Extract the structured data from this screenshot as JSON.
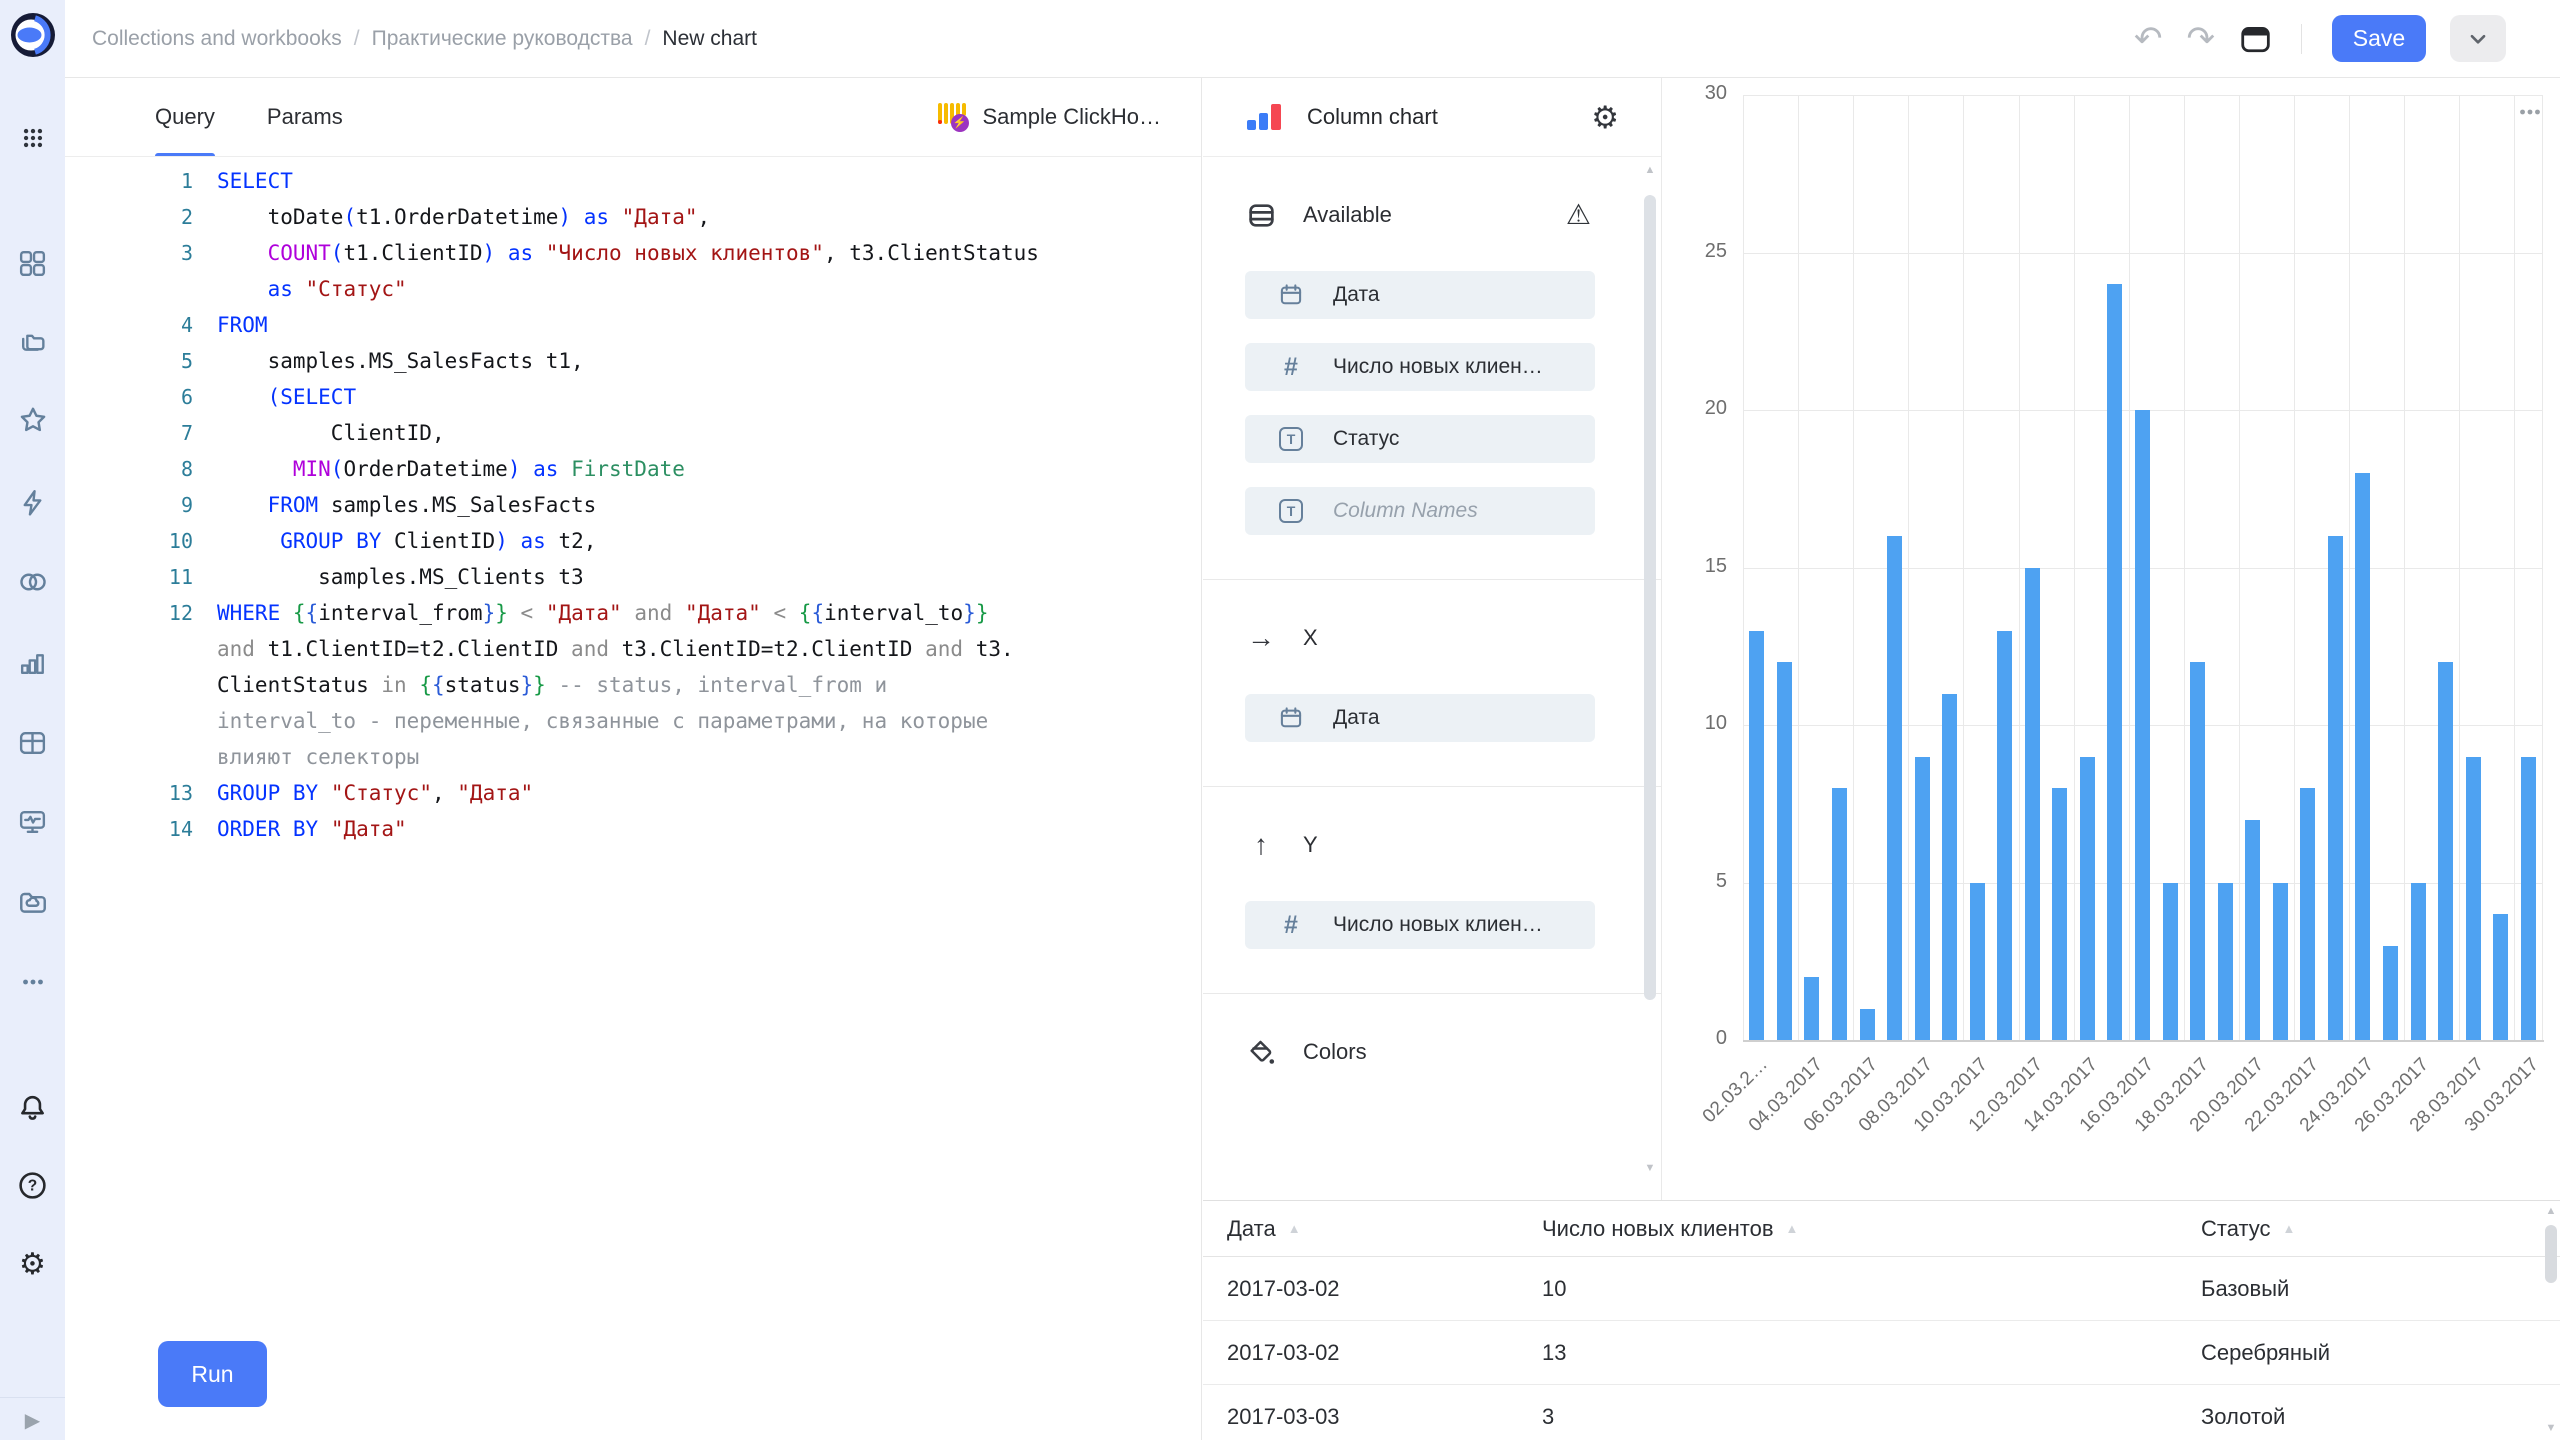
{
  "header": {
    "breadcrumb": [
      "Collections and workbooks",
      "Практические руководства",
      "New chart"
    ],
    "separator": "/",
    "actions": {
      "save_label": "Save",
      "icons": [
        "undo-icon",
        "redo-icon",
        "layout-icon",
        "chevron-down-icon"
      ]
    }
  },
  "sidebar": {
    "logo_icon": "datalens-logo",
    "apps_icon": "apps-grid-icon",
    "nav_icons": [
      "squares-icon",
      "folders-icon",
      "star-icon",
      "lightning-icon",
      "circles-icon",
      "bar-chart-icon",
      "table-icon",
      "monitor-icon",
      "cloud-folder-icon",
      "ellipsis-icon"
    ],
    "footer_icons": [
      "bell-icon",
      "help-icon",
      "gear-icon"
    ],
    "expand_icon": "play-icon"
  },
  "editor": {
    "tabs": [
      {
        "label": "Query",
        "active": true
      },
      {
        "label": "Params",
        "active": false
      }
    ],
    "connection": {
      "name": "Sample ClickHo…",
      "icon": "clickhouse-icon"
    },
    "run_label": "Run",
    "code": [
      {
        "ln": "1",
        "tokens": [
          [
            "kw",
            "SELECT"
          ]
        ]
      },
      {
        "ln": "2",
        "tokens": [
          [
            "id",
            "    "
          ],
          [
            "id",
            "toDate"
          ],
          [
            "pa",
            "("
          ],
          [
            "id",
            "t1.OrderDatetime"
          ],
          [
            "pa",
            ")"
          ],
          [
            "id",
            " "
          ],
          [
            "kw",
            "as"
          ],
          [
            "id",
            " "
          ],
          [
            "st",
            "\"Дата\""
          ],
          [
            "id",
            ","
          ]
        ]
      },
      {
        "ln": "3",
        "tokens": [
          [
            "id",
            "    "
          ],
          [
            "fn",
            "COUNT"
          ],
          [
            "pa",
            "("
          ],
          [
            "id",
            "t1.ClientID"
          ],
          [
            "pa",
            ")"
          ],
          [
            "id",
            " "
          ],
          [
            "kw",
            "as"
          ],
          [
            "id",
            " "
          ],
          [
            "st",
            "\"Число новых клиентов\""
          ],
          [
            "id",
            ","
          ],
          [
            "id",
            " "
          ],
          [
            "id",
            "t3.ClientStatus"
          ]
        ]
      },
      {
        "ln": "",
        "tokens": [
          [
            "id",
            "    "
          ],
          [
            "kw",
            "as"
          ],
          [
            "id",
            " "
          ],
          [
            "st",
            "\"Статус\""
          ]
        ]
      },
      {
        "ln": "4",
        "tokens": [
          [
            "kw",
            "FROM"
          ]
        ]
      },
      {
        "ln": "5",
        "tokens": [
          [
            "id",
            "    "
          ],
          [
            "id",
            "samples.MS_SalesFacts t1,"
          ]
        ]
      },
      {
        "ln": "6",
        "tokens": [
          [
            "id",
            "    "
          ],
          [
            "pa",
            "("
          ],
          [
            "kw",
            "SELECT"
          ]
        ]
      },
      {
        "ln": "7",
        "tokens": [
          [
            "id",
            "         "
          ],
          [
            "id",
            "ClientID,"
          ]
        ]
      },
      {
        "ln": "8",
        "tokens": [
          [
            "id",
            "      "
          ],
          [
            "fn",
            "MIN"
          ],
          [
            "pa",
            "("
          ],
          [
            "id",
            "OrderDatetime"
          ],
          [
            "pa",
            ")"
          ],
          [
            "id",
            " "
          ],
          [
            "kw",
            "as"
          ],
          [
            "id",
            " "
          ],
          [
            "ty",
            "FirstDate"
          ]
        ]
      },
      {
        "ln": "9",
        "tokens": [
          [
            "id",
            "    "
          ],
          [
            "kw",
            "FROM"
          ],
          [
            "id",
            " "
          ],
          [
            "id",
            "samples.MS_SalesFacts"
          ]
        ]
      },
      {
        "ln": "10",
        "tokens": [
          [
            "id",
            "     "
          ],
          [
            "kw",
            "GROUP BY"
          ],
          [
            "id",
            " "
          ],
          [
            "id",
            "ClientID"
          ],
          [
            "pa",
            ")"
          ],
          [
            "id",
            " "
          ],
          [
            "kw",
            "as"
          ],
          [
            "id",
            " "
          ],
          [
            "id",
            "t2,"
          ]
        ]
      },
      {
        "ln": "11",
        "tokens": [
          [
            "id",
            "        "
          ],
          [
            "id",
            "samples.MS_Clients t3"
          ]
        ]
      },
      {
        "ln": "12",
        "tokens": [
          [
            "kw",
            "WHERE"
          ],
          [
            "id",
            " "
          ],
          [
            "b1",
            "{"
          ],
          [
            "b2",
            "{"
          ],
          [
            "id",
            "interval_from"
          ],
          [
            "b2",
            "}"
          ],
          [
            "b1",
            "}"
          ],
          [
            "id",
            " "
          ],
          [
            "op",
            "<"
          ],
          [
            "id",
            " "
          ],
          [
            "st",
            "\"Дата\""
          ],
          [
            "id",
            " "
          ],
          [
            "op",
            "and"
          ],
          [
            "id",
            " "
          ],
          [
            "st",
            "\"Дата\""
          ],
          [
            "id",
            " "
          ],
          [
            "op",
            "<"
          ],
          [
            "id",
            " "
          ],
          [
            "b1",
            "{"
          ],
          [
            "b2",
            "{"
          ],
          [
            "id",
            "interval_to"
          ],
          [
            "b2",
            "}"
          ],
          [
            "b1",
            "}"
          ]
        ]
      },
      {
        "ln": "",
        "tokens": [
          [
            "op",
            "and"
          ],
          [
            "id",
            " "
          ],
          [
            "id",
            "t1.ClientID=t2.ClientID"
          ],
          [
            "id",
            " "
          ],
          [
            "op",
            "and"
          ],
          [
            "id",
            " "
          ],
          [
            "id",
            "t3.ClientID=t2.ClientID"
          ],
          [
            "id",
            " "
          ],
          [
            "op",
            "and"
          ],
          [
            "id",
            " "
          ],
          [
            "id",
            "t3."
          ]
        ]
      },
      {
        "ln": "",
        "tokens": [
          [
            "id",
            "ClientStatus"
          ],
          [
            "id",
            " "
          ],
          [
            "op",
            "in"
          ],
          [
            "id",
            " "
          ],
          [
            "b1",
            "{"
          ],
          [
            "b2",
            "{"
          ],
          [
            "id",
            "status"
          ],
          [
            "b2",
            "}"
          ],
          [
            "b1",
            "}"
          ],
          [
            "id",
            " "
          ],
          [
            "cm",
            "-- status, interval_from и"
          ]
        ]
      },
      {
        "ln": "",
        "tokens": [
          [
            "cm",
            "interval_to - переменные, связанные с параметрами, на которые"
          ]
        ]
      },
      {
        "ln": "",
        "tokens": [
          [
            "cm",
            "влияют селекторы"
          ]
        ]
      },
      {
        "ln": "13",
        "tokens": [
          [
            "kw",
            "GROUP BY"
          ],
          [
            "id",
            " "
          ],
          [
            "st",
            "\"Статус\""
          ],
          [
            "id",
            ","
          ],
          [
            "id",
            " "
          ],
          [
            "st",
            "\"Дата\""
          ]
        ]
      },
      {
        "ln": "14",
        "tokens": [
          [
            "kw",
            "ORDER BY"
          ],
          [
            "id",
            " "
          ],
          [
            "st",
            "\"Дата\""
          ]
        ]
      }
    ]
  },
  "panel": {
    "title": "Column chart",
    "title_icon": "column-chart-icon",
    "settings_icon": "gear-icon",
    "sections": [
      {
        "id": "available",
        "icon": "rows-icon",
        "label": "Available",
        "trailing_icon": "warning-icon",
        "fields": [
          {
            "icon": "calendar-icon",
            "label": "Дата",
            "muted": false
          },
          {
            "icon": "hash-icon",
            "label": "Число новых клиен…",
            "muted": false
          },
          {
            "icon": "text-icon",
            "label": "Статус",
            "muted": false
          },
          {
            "icon": "text-icon",
            "label": "Column Names",
            "muted": true
          }
        ]
      },
      {
        "id": "x",
        "icon": "arrow-right-icon",
        "label": "X",
        "trailing_icon": "",
        "fields": [
          {
            "icon": "calendar-icon",
            "label": "Дата",
            "muted": false
          }
        ]
      },
      {
        "id": "y",
        "icon": "arrow-up-icon",
        "label": "Y",
        "trailing_icon": "",
        "fields": [
          {
            "icon": "hash-icon",
            "label": "Число новых клиен…",
            "muted": false
          }
        ]
      },
      {
        "id": "colors",
        "icon": "bucket-icon",
        "label": "Colors",
        "trailing_icon": "",
        "fields": []
      }
    ]
  },
  "chart_data": {
    "type": "bar",
    "title": "",
    "xlabel": "",
    "ylabel": "",
    "values": [
      13,
      12,
      2,
      8,
      1,
      16,
      9,
      11,
      5,
      13,
      15,
      8,
      9,
      24,
      20,
      5,
      12,
      5,
      7,
      5,
      8,
      16,
      18,
      3,
      5,
      12,
      9,
      4,
      9
    ],
    "tick_labels": [
      "02.03.2…",
      "04.03.2017",
      "06.03.2017",
      "08.03.2017",
      "10.03.2017",
      "12.03.2017",
      "14.03.2017",
      "16.03.2017",
      "18.03.2017",
      "20.03.2017",
      "22.03.2017",
      "24.03.2017",
      "26.03.2017",
      "28.03.2017",
      "30.03.2017"
    ],
    "tick_every": 2,
    "yticks": [
      0,
      5,
      10,
      15,
      20,
      25,
      30
    ],
    "ylim": [
      0,
      30
    ],
    "bar_color": "#4EA2F2",
    "grid": true,
    "legend": false,
    "xlabel_rotation": -45,
    "menu_icon": "ellipsis-icon"
  },
  "table": {
    "headers": [
      "Дата",
      "Число новых клиентов",
      "Статус"
    ],
    "sort_icon": "sort-asc-icon",
    "rows": [
      [
        "2017-03-02",
        "10",
        "Базовый"
      ],
      [
        "2017-03-02",
        "13",
        "Серебряный"
      ],
      [
        "2017-03-03",
        "3",
        "Золотой"
      ]
    ]
  }
}
